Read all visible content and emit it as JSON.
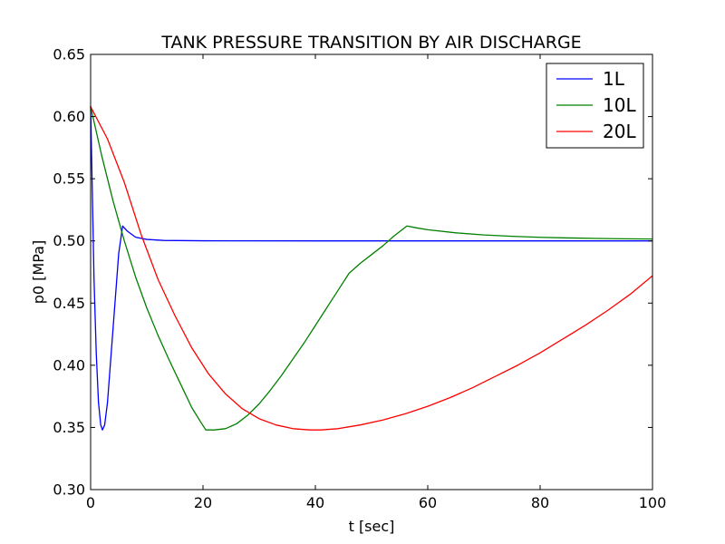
{
  "chart_data": {
    "type": "line",
    "title": "TANK PRESSURE TRANSITION BY AIR DISCHARGE",
    "xlabel": "t [sec]",
    "ylabel": "p0 [MPa]",
    "xlim": [
      0,
      100
    ],
    "ylim": [
      0.3,
      0.65
    ],
    "xticks": [
      0,
      20,
      40,
      60,
      80,
      100
    ],
    "xtick_labels": [
      "0",
      "20",
      "40",
      "60",
      "80",
      "100"
    ],
    "yticks": [
      0.3,
      0.35,
      0.4,
      0.45,
      0.5,
      0.55,
      0.6,
      0.65
    ],
    "ytick_labels": [
      "0.30",
      "0.35",
      "0.40",
      "0.45",
      "0.50",
      "0.55",
      "0.60",
      "0.65"
    ],
    "grid": false,
    "legend_position": "top-right",
    "series": [
      {
        "name": "1L",
        "color": "#0000ff",
        "points": [
          [
            0,
            0.608
          ],
          [
            0.3,
            0.54
          ],
          [
            0.6,
            0.47
          ],
          [
            1.0,
            0.41
          ],
          [
            1.4,
            0.37
          ],
          [
            1.8,
            0.352
          ],
          [
            2.1,
            0.348
          ],
          [
            2.5,
            0.352
          ],
          [
            3.0,
            0.37
          ],
          [
            3.5,
            0.4
          ],
          [
            4.0,
            0.43
          ],
          [
            4.5,
            0.46
          ],
          [
            5.0,
            0.49
          ],
          [
            5.7,
            0.512
          ],
          [
            6.5,
            0.508
          ],
          [
            8,
            0.503
          ],
          [
            10,
            0.5012
          ],
          [
            13,
            0.5004
          ],
          [
            20,
            0.5001
          ],
          [
            40,
            0.5
          ],
          [
            60,
            0.5
          ],
          [
            80,
            0.5
          ],
          [
            100,
            0.5
          ]
        ]
      },
      {
        "name": "10L",
        "color": "#008000",
        "points": [
          [
            0,
            0.608
          ],
          [
            2,
            0.568
          ],
          [
            4,
            0.532
          ],
          [
            6,
            0.5
          ],
          [
            8,
            0.471
          ],
          [
            10,
            0.446
          ],
          [
            12,
            0.424
          ],
          [
            14,
            0.404
          ],
          [
            16,
            0.385
          ],
          [
            18,
            0.366
          ],
          [
            19.5,
            0.355
          ],
          [
            20.5,
            0.348
          ],
          [
            22,
            0.348
          ],
          [
            24,
            0.349
          ],
          [
            26,
            0.353
          ],
          [
            28,
            0.36
          ],
          [
            30,
            0.369
          ],
          [
            32,
            0.38
          ],
          [
            34,
            0.392
          ],
          [
            36,
            0.405
          ],
          [
            38,
            0.418
          ],
          [
            40,
            0.432
          ],
          [
            42,
            0.446
          ],
          [
            44,
            0.46
          ],
          [
            46,
            0.474
          ],
          [
            48,
            0.482
          ],
          [
            50,
            0.489
          ],
          [
            52,
            0.496
          ],
          [
            54,
            0.504
          ],
          [
            56.3,
            0.512
          ],
          [
            58,
            0.5105
          ],
          [
            60,
            0.509
          ],
          [
            65,
            0.5065
          ],
          [
            70,
            0.5048
          ],
          [
            75,
            0.5037
          ],
          [
            80,
            0.5029
          ],
          [
            85,
            0.5024
          ],
          [
            90,
            0.502
          ],
          [
            95,
            0.5017
          ],
          [
            100,
            0.5015
          ]
        ]
      },
      {
        "name": "20L",
        "color": "#ff0000",
        "points": [
          [
            0,
            0.608
          ],
          [
            3,
            0.582
          ],
          [
            6,
            0.547
          ],
          [
            9,
            0.505
          ],
          [
            12,
            0.469
          ],
          [
            15,
            0.44
          ],
          [
            18,
            0.414
          ],
          [
            21,
            0.393
          ],
          [
            24,
            0.377
          ],
          [
            27,
            0.365
          ],
          [
            30,
            0.357
          ],
          [
            33,
            0.352
          ],
          [
            36,
            0.349
          ],
          [
            39,
            0.348
          ],
          [
            41,
            0.348
          ],
          [
            44,
            0.349
          ],
          [
            48,
            0.352
          ],
          [
            52,
            0.356
          ],
          [
            56,
            0.361
          ],
          [
            60,
            0.367
          ],
          [
            64,
            0.374
          ],
          [
            68,
            0.382
          ],
          [
            72,
            0.391
          ],
          [
            76,
            0.4
          ],
          [
            80,
            0.41
          ],
          [
            84,
            0.421
          ],
          [
            88,
            0.432
          ],
          [
            92,
            0.444
          ],
          [
            96,
            0.457
          ],
          [
            100,
            0.472
          ]
        ]
      }
    ]
  }
}
